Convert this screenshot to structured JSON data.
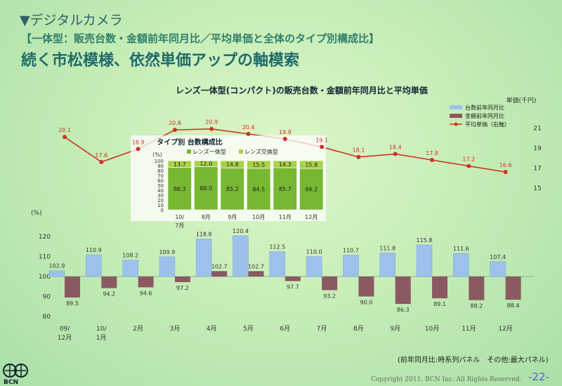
{
  "header": {
    "section_title": "▼デジタルカメラ",
    "sub_title": "【一体型：販売台数・金額前年同月比／平均単価と全体のタイプ別構成比】",
    "headline": "続く市松模様、依然単価アップの軸模索"
  },
  "footer": {
    "note": "(前年同月比:時系列パネル　その他:最大パネル)",
    "copyright": "Copyright 2011. BCN Inc. All Rights Reserved.",
    "page_number": "-22-",
    "logo_text": "BCN"
  },
  "colors": {
    "units_bar": "#9cc2ec",
    "value_bar": "#8a5a60",
    "price_line": "#cc3322",
    "compact_fill": "#77b833",
    "interchangeable_fill": "#aad14a"
  },
  "chart_data": [
    {
      "type": "bar",
      "title": "レンズ一体型(コンパクト)の販売台数・金額前年同月比と平均単価",
      "ylabel": "(%)",
      "ylim": [
        80,
        120
      ],
      "yticks": [
        "80",
        "90",
        "100",
        "110",
        "120"
      ],
      "x_labels": [
        [
          "09/",
          "12月"
        ],
        [
          "10/",
          "1月"
        ],
        [
          "2月"
        ],
        [
          "3月"
        ],
        [
          "4月"
        ],
        [
          "5月"
        ],
        [
          "6月"
        ],
        [
          "7月"
        ],
        [
          "8月"
        ],
        [
          "9月"
        ],
        [
          "10月"
        ],
        [
          "11月"
        ],
        [
          "12月"
        ]
      ],
      "legend": [
        "台数前年同月比",
        "金額前年同月比",
        "平均単価（右軸）"
      ],
      "series": [
        {
          "name": "台数前年同月比",
          "values": [
            102.9,
            110.9,
            108.2,
            109.9,
            118.8,
            120.4,
            112.5,
            110.0,
            110.7,
            111.8,
            115.8,
            111.6,
            107.4
          ]
        },
        {
          "name": "金額前年同月比",
          "values": [
            89.5,
            94.2,
            94.6,
            97.2,
            102.7,
            102.7,
            97.7,
            93.2,
            90.0,
            86.3,
            89.1,
            88.2,
            88.4
          ]
        }
      ]
    },
    {
      "type": "line",
      "y2label": "単価(千円)",
      "y2ticks": [
        "15",
        "17",
        "19",
        "21"
      ],
      "ylim": [
        15,
        22
      ],
      "series": [
        {
          "name": "平均単価（右軸）",
          "values": [
            20.1,
            17.6,
            18.9,
            20.8,
            20.9,
            20.4,
            19.9,
            19.1,
            18.1,
            18.4,
            17.8,
            17.2,
            16.6
          ]
        }
      ]
    },
    {
      "type": "bar",
      "title": "タイプ別 台数構成比",
      "ylabel": "(%)",
      "ylim": [
        0,
        100
      ],
      "yticks": [
        "0",
        "10",
        "20",
        "30",
        "40",
        "50",
        "60",
        "70",
        "80",
        "90",
        "100"
      ],
      "categories": [
        [
          "10/",
          "7月"
        ],
        [
          "8月"
        ],
        [
          "9月"
        ],
        [
          "10月"
        ],
        [
          "11月"
        ],
        [
          "12月"
        ]
      ],
      "legend": [
        "レンズ一体型",
        "レンズ交換型"
      ],
      "series": [
        {
          "name": "レンズ一体型",
          "values": [
            86.3,
            88.0,
            85.2,
            84.5,
            85.7,
            84.2
          ]
        },
        {
          "name": "レンズ交換型",
          "values": [
            13.7,
            12.0,
            14.8,
            15.5,
            14.3,
            15.8
          ]
        }
      ]
    }
  ]
}
